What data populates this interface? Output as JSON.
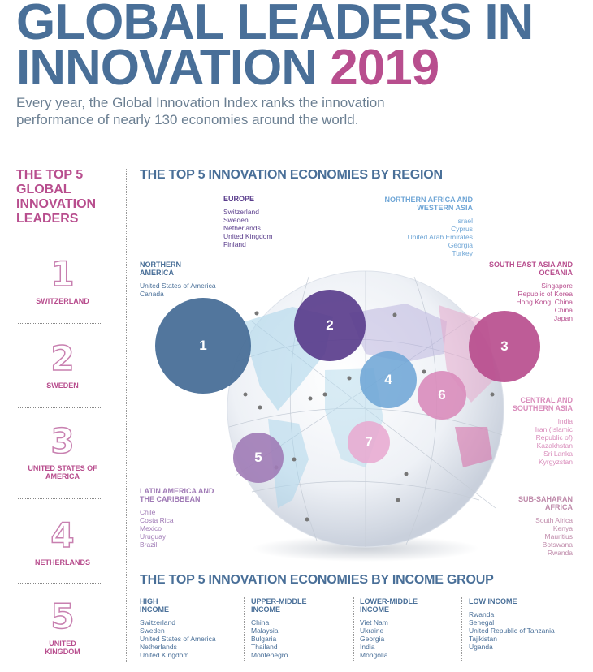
{
  "title": {
    "line1": "GLOBAL LEADERS IN",
    "line2": "INNOVATION",
    "year": "2019"
  },
  "subtitle": "Every year, the Global Innovation Index ranks the innovation performance of nearly 130 economies around the world.",
  "leaders": {
    "heading": "THE TOP 5 GLOBAL INNOVATION LEADERS",
    "items": [
      {
        "rank": "1",
        "name": "SWITZERLAND"
      },
      {
        "rank": "2",
        "name": "SWEDEN"
      },
      {
        "rank": "3",
        "name": "UNITED STATES OF AMERICA"
      },
      {
        "rank": "4",
        "name": "NETHERLANDS"
      },
      {
        "rank": "5",
        "name": "UNITED KINGDOM"
      }
    ]
  },
  "by_region": {
    "heading": "THE TOP 5 INNOVATION ECONOMIES BY REGION",
    "bubbles": [
      "1",
      "2",
      "3",
      "4",
      "6",
      "7",
      "5"
    ],
    "regions": {
      "europe": {
        "name": "EUROPE",
        "countries": [
          "Switzerland",
          "Sweden",
          "Netherlands",
          "United Kingdom",
          "Finland"
        ],
        "color": "#5a3d8c"
      },
      "nafrica": {
        "name": "NORTHERN AFRICA AND WESTERN ASIA",
        "countries": [
          "Israel",
          "Cyprus",
          "United Arab Emirates",
          "Georgia",
          "Turkey"
        ],
        "color": "#6fa6d6"
      },
      "namerica": {
        "name": "NORTHERN AMERICA",
        "countries": [
          "United States of America",
          "Canada"
        ],
        "color": "#496f98"
      },
      "seasia": {
        "name": "SOUTH EAST ASIA AND OCEANIA",
        "countries": [
          "Singapore",
          "Republic of Korea",
          "Hong Kong, China",
          "China",
          "Japan"
        ],
        "color": "#b84e8e"
      },
      "csasia": {
        "name": "CENTRAL AND SOUTHERN ASIA",
        "countries": [
          "India",
          "Iran (Islamic Republic of)",
          "Kazakhstan",
          "Sri Lanka",
          "Kyrgyzstan"
        ],
        "color": "#d98cbb"
      },
      "latam": {
        "name": "LATIN AMERICA AND THE CARIBBEAN",
        "countries": [
          "Chile",
          "Costa Rica",
          "Mexico",
          "Uruguay",
          "Brazil"
        ],
        "color": "#a07bb6"
      },
      "ssafrica": {
        "name": "SUB-SAHARAN AFRICA",
        "countries": [
          "South Africa",
          "Kenya",
          "Mauritius",
          "Botswana",
          "Rwanda"
        ],
        "color": "#bf8aaa"
      }
    }
  },
  "by_income": {
    "heading": "THE TOP 5 INNOVATION ECONOMIES BY INCOME GROUP",
    "groups": [
      {
        "name": "HIGH INCOME",
        "countries": [
          "Switzerland",
          "Sweden",
          "United States of America",
          "Netherlands",
          "United Kingdom"
        ]
      },
      {
        "name": "UPPER-MIDDLE INCOME",
        "countries": [
          "China",
          "Malaysia",
          "Bulgaria",
          "Thailand",
          "Montenegro"
        ]
      },
      {
        "name": "LOWER-MIDDLE INCOME",
        "countries": [
          "Viet Nam",
          "Ukraine",
          "Georgia",
          "India",
          "Mongolia"
        ]
      },
      {
        "name": "LOW INCOME",
        "countries": [
          "Rwanda",
          "Senegal",
          "United Republic of Tanzania",
          "Tajikistan",
          "Uganda"
        ]
      }
    ]
  },
  "colors": {
    "blue": "#496f98",
    "magenta": "#b84e8e",
    "purple": "#5a3d8c",
    "light_blue": "#6fa6d6",
    "pink": "#d98cbb",
    "lavender": "#a07bb6"
  }
}
